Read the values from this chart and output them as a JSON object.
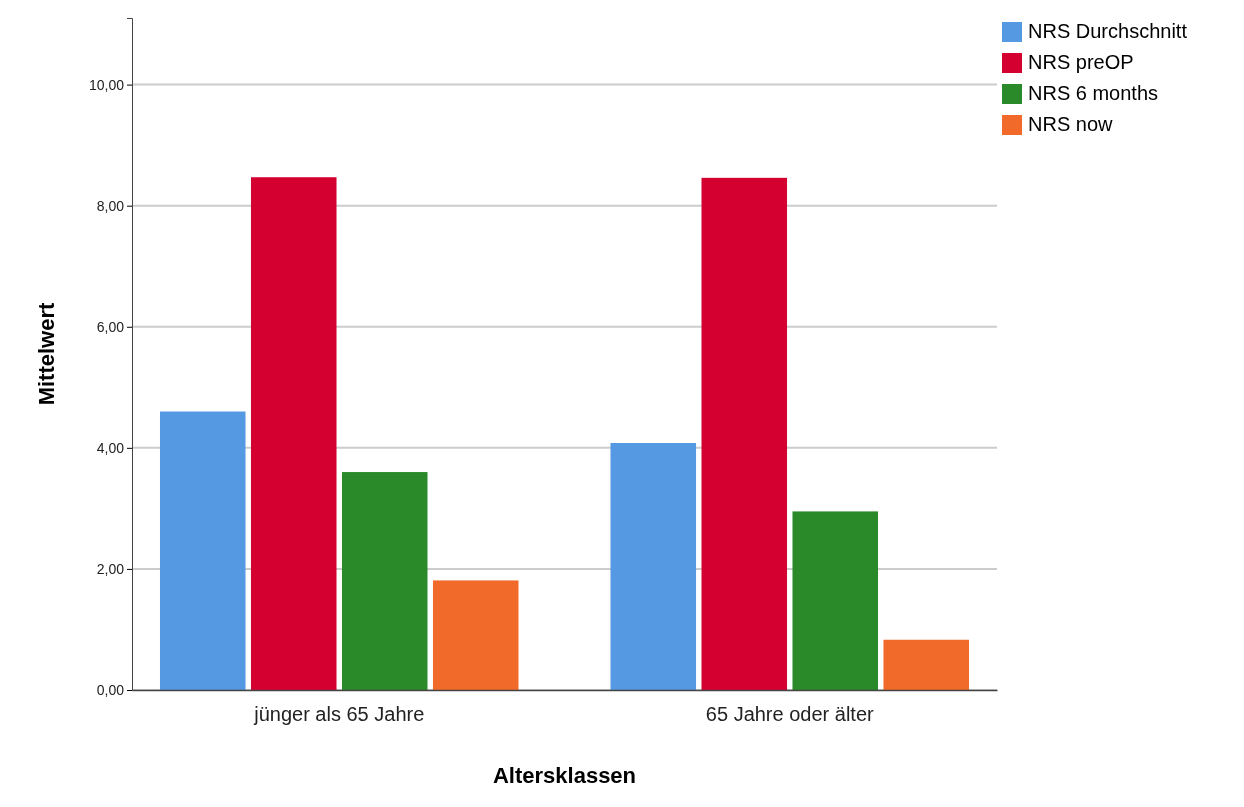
{
  "chart_data": {
    "type": "bar",
    "xlabel": "Altersklassen",
    "ylabel": "Mittelwert",
    "categories": [
      "jünger als 65 Jahre",
      "65 Jahre oder älter"
    ],
    "series": [
      {
        "name": "NRS Durchschnitt",
        "color": "#5599e2",
        "values": [
          4.6,
          4.08
        ]
      },
      {
        "name": "NRS preOP",
        "color": "#d40030",
        "values": [
          8.47,
          8.46
        ]
      },
      {
        "name": "NRS 6 months",
        "color": "#2a8a2a",
        "values": [
          3.6,
          2.95
        ]
      },
      {
        "name": "NRS now",
        "color": "#f26a2a",
        "values": [
          1.81,
          0.83
        ]
      }
    ],
    "ylim": [
      0,
      11.1
    ],
    "yticks": [
      {
        "value": 0,
        "label": "0,00"
      },
      {
        "value": 2,
        "label": "2,00"
      },
      {
        "value": 4,
        "label": "4,00"
      },
      {
        "value": 6,
        "label": "6,00"
      },
      {
        "value": 8,
        "label": "8,00"
      },
      {
        "value": 10,
        "label": "10,00"
      }
    ],
    "grid": "y",
    "legend": "top right"
  }
}
